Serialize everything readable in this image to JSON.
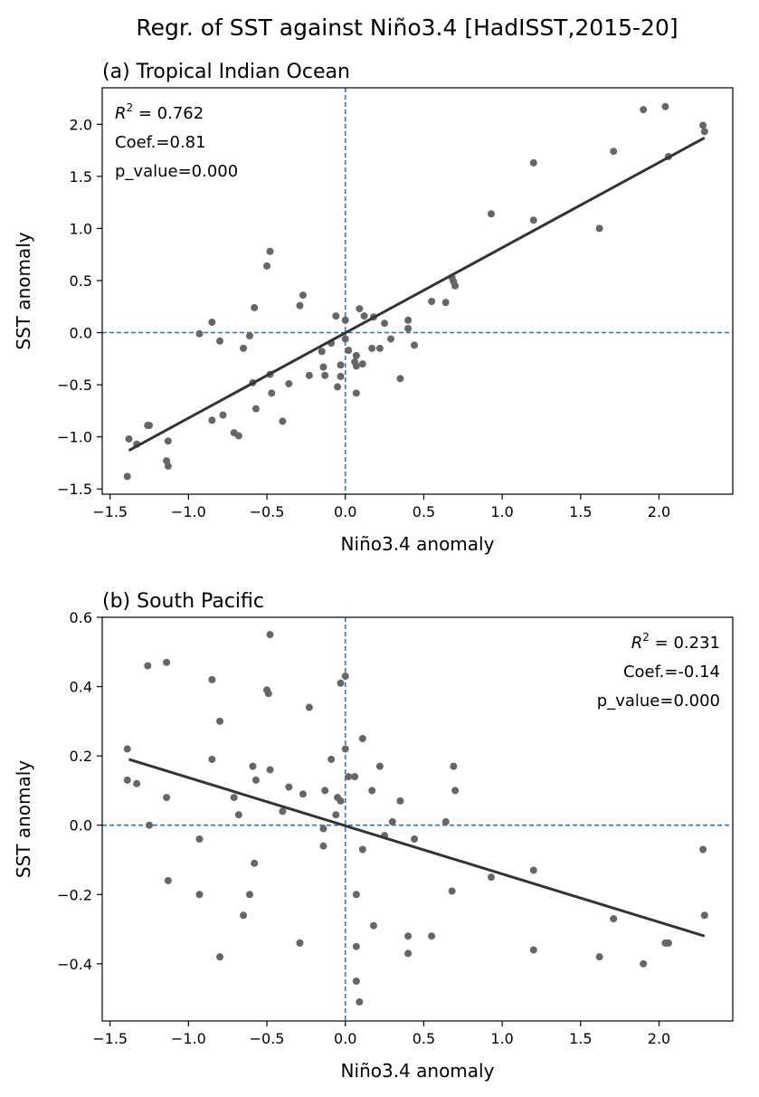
{
  "figure": {
    "suptitle": "Regr. of SST against Niño3.4 [HadISST,2015-20]"
  },
  "colors": {
    "points": "#666666",
    "fit_line": "#333333",
    "zero_lines": "#1f77b4",
    "axes": "#000000"
  },
  "chart_data": [
    {
      "type": "scatter",
      "title": "(a) Tropical Indian Ocean",
      "xlabel": "Niño3.4 anomaly",
      "ylabel": "SST anomaly",
      "xlim": [
        -1.55,
        2.47
      ],
      "ylim": [
        -1.55,
        2.35
      ],
      "xticks": [
        -1.5,
        -1.0,
        -0.5,
        0.0,
        0.5,
        1.0,
        1.5,
        2.0
      ],
      "xtick_labels": [
        "−1.5",
        "−1.0",
        "−0.5",
        "0.0",
        "0.5",
        "1.0",
        "1.5",
        "2.0"
      ],
      "yticks": [
        -1.5,
        -1.0,
        -0.5,
        0.0,
        0.5,
        1.0,
        1.5,
        2.0
      ],
      "ytick_labels": [
        "−1.5",
        "−1.0",
        "−0.5",
        "0.0",
        "0.5",
        "1.0",
        "1.5",
        "2.0"
      ],
      "zero_lines": true,
      "grid": false,
      "stats": {
        "r2_label": "R",
        "r2_sup": "2",
        "r2_value": " = 0.762",
        "coef": "Coef.=0.81",
        "p_value": "p_value=0.000",
        "position": "top-left"
      },
      "fit": {
        "x": [
          -1.38,
          2.29
        ],
        "y": [
          -1.13,
          1.87
        ]
      },
      "points": [
        {
          "x": -1.39,
          "y": -1.38
        },
        {
          "x": -1.38,
          "y": -1.02
        },
        {
          "x": -1.33,
          "y": -1.07
        },
        {
          "x": -1.26,
          "y": -0.89
        },
        {
          "x": -1.25,
          "y": -0.89
        },
        {
          "x": -1.14,
          "y": -1.23
        },
        {
          "x": -1.13,
          "y": -1.28
        },
        {
          "x": -1.13,
          "y": -1.04
        },
        {
          "x": -0.93,
          "y": -0.01
        },
        {
          "x": -0.85,
          "y": 0.1
        },
        {
          "x": -0.85,
          "y": -0.84
        },
        {
          "x": -0.8,
          "y": -0.08
        },
        {
          "x": -0.78,
          "y": -0.79
        },
        {
          "x": -0.71,
          "y": -0.96
        },
        {
          "x": -0.68,
          "y": -0.99
        },
        {
          "x": -0.65,
          "y": -0.15
        },
        {
          "x": -0.61,
          "y": -0.03
        },
        {
          "x": -0.59,
          "y": -0.48
        },
        {
          "x": -0.58,
          "y": 0.24
        },
        {
          "x": -0.57,
          "y": -0.73
        },
        {
          "x": -0.5,
          "y": 0.64
        },
        {
          "x": -0.48,
          "y": 0.78
        },
        {
          "x": -0.48,
          "y": -0.4
        },
        {
          "x": -0.47,
          "y": -0.58
        },
        {
          "x": -0.4,
          "y": -0.85
        },
        {
          "x": -0.36,
          "y": -0.49
        },
        {
          "x": -0.29,
          "y": 0.26
        },
        {
          "x": -0.27,
          "y": 0.36
        },
        {
          "x": -0.23,
          "y": -0.41
        },
        {
          "x": -0.15,
          "y": -0.18
        },
        {
          "x": -0.14,
          "y": -0.33
        },
        {
          "x": -0.13,
          "y": -0.41
        },
        {
          "x": -0.09,
          "y": -0.1
        },
        {
          "x": -0.06,
          "y": 0.16
        },
        {
          "x": -0.05,
          "y": -0.52
        },
        {
          "x": -0.03,
          "y": -0.31
        },
        {
          "x": -0.03,
          "y": -0.42
        },
        {
          "x": 0.0,
          "y": -0.06
        },
        {
          "x": 0.0,
          "y": 0.12
        },
        {
          "x": 0.02,
          "y": -0.17
        },
        {
          "x": 0.06,
          "y": -0.28
        },
        {
          "x": 0.07,
          "y": -0.22
        },
        {
          "x": 0.07,
          "y": -0.32
        },
        {
          "x": 0.07,
          "y": -0.58
        },
        {
          "x": 0.09,
          "y": 0.23
        },
        {
          "x": 0.11,
          "y": -0.3
        },
        {
          "x": 0.12,
          "y": 0.16
        },
        {
          "x": 0.17,
          "y": -0.15
        },
        {
          "x": 0.18,
          "y": 0.15
        },
        {
          "x": 0.22,
          "y": -0.15
        },
        {
          "x": 0.25,
          "y": 0.09
        },
        {
          "x": 0.29,
          "y": -0.06
        },
        {
          "x": 0.35,
          "y": -0.44
        },
        {
          "x": 0.4,
          "y": 0.12
        },
        {
          "x": 0.4,
          "y": 0.04
        },
        {
          "x": 0.44,
          "y": -0.12
        },
        {
          "x": 0.55,
          "y": 0.3
        },
        {
          "x": 0.64,
          "y": 0.29
        },
        {
          "x": 0.68,
          "y": 0.53
        },
        {
          "x": 0.69,
          "y": 0.49
        },
        {
          "x": 0.7,
          "y": 0.45
        },
        {
          "x": 0.93,
          "y": 1.14
        },
        {
          "x": 1.2,
          "y": 1.63
        },
        {
          "x": 1.2,
          "y": 1.08
        },
        {
          "x": 1.62,
          "y": 1.0
        },
        {
          "x": 1.71,
          "y": 1.74
        },
        {
          "x": 1.9,
          "y": 2.14
        },
        {
          "x": 2.04,
          "y": 2.17
        },
        {
          "x": 2.06,
          "y": 1.69
        },
        {
          "x": 2.28,
          "y": 1.99
        },
        {
          "x": 2.29,
          "y": 1.93
        }
      ]
    },
    {
      "type": "scatter",
      "title": "(b) South Pacific",
      "xlabel": "Niño3.4 anomaly",
      "ylabel": "SST anomaly",
      "xlim": [
        -1.55,
        2.47
      ],
      "ylim": [
        -0.565,
        0.6
      ],
      "xticks": [
        -1.5,
        -1.0,
        -0.5,
        0.0,
        0.5,
        1.0,
        1.5,
        2.0
      ],
      "xtick_labels": [
        "−1.5",
        "−1.0",
        "−0.5",
        "0.0",
        "0.5",
        "1.0",
        "1.5",
        "2.0"
      ],
      "yticks": [
        -0.4,
        -0.2,
        0.0,
        0.2,
        0.4,
        0.6
      ],
      "ytick_labels": [
        "−0.4",
        "−0.2",
        "0.0",
        "0.2",
        "0.4",
        "0.6"
      ],
      "zero_lines": true,
      "grid": false,
      "stats": {
        "r2_label": "R",
        "r2_sup": "2",
        "r2_value": " = 0.231",
        "coef": "Coef.=-0.14",
        "p_value": "p_value=0.000",
        "position": "top-right"
      },
      "fit": {
        "x": [
          -1.38,
          2.29
        ],
        "y": [
          0.19,
          -0.32
        ]
      },
      "points": [
        {
          "x": -1.39,
          "y": 0.22
        },
        {
          "x": -1.39,
          "y": 0.13
        },
        {
          "x": -1.33,
          "y": 0.12
        },
        {
          "x": -1.26,
          "y": 0.46
        },
        {
          "x": -1.25,
          "y": 0.0
        },
        {
          "x": -1.14,
          "y": 0.47
        },
        {
          "x": -1.14,
          "y": 0.08
        },
        {
          "x": -1.13,
          "y": -0.16
        },
        {
          "x": -0.93,
          "y": -0.04
        },
        {
          "x": -0.93,
          "y": -0.2
        },
        {
          "x": -0.85,
          "y": 0.42
        },
        {
          "x": -0.85,
          "y": 0.19
        },
        {
          "x": -0.8,
          "y": 0.3
        },
        {
          "x": -0.8,
          "y": -0.38
        },
        {
          "x": -0.71,
          "y": 0.08
        },
        {
          "x": -0.68,
          "y": 0.03
        },
        {
          "x": -0.65,
          "y": -0.26
        },
        {
          "x": -0.61,
          "y": -0.2
        },
        {
          "x": -0.59,
          "y": 0.17
        },
        {
          "x": -0.58,
          "y": -0.11
        },
        {
          "x": -0.57,
          "y": 0.13
        },
        {
          "x": -0.5,
          "y": 0.39
        },
        {
          "x": -0.49,
          "y": 0.38
        },
        {
          "x": -0.48,
          "y": 0.55
        },
        {
          "x": -0.48,
          "y": 0.16
        },
        {
          "x": -0.4,
          "y": 0.04
        },
        {
          "x": -0.36,
          "y": 0.11
        },
        {
          "x": -0.29,
          "y": -0.34
        },
        {
          "x": -0.27,
          "y": 0.09
        },
        {
          "x": -0.23,
          "y": 0.34
        },
        {
          "x": -0.14,
          "y": -0.01
        },
        {
          "x": -0.14,
          "y": -0.06
        },
        {
          "x": -0.13,
          "y": 0.1
        },
        {
          "x": -0.09,
          "y": 0.19
        },
        {
          "x": -0.06,
          "y": 0.03
        },
        {
          "x": -0.05,
          "y": 0.08
        },
        {
          "x": -0.03,
          "y": 0.07
        },
        {
          "x": -0.03,
          "y": 0.41
        },
        {
          "x": 0.0,
          "y": 0.43
        },
        {
          "x": 0.0,
          "y": 0.22
        },
        {
          "x": 0.02,
          "y": 0.14
        },
        {
          "x": 0.06,
          "y": 0.14
        },
        {
          "x": 0.07,
          "y": -0.2
        },
        {
          "x": 0.07,
          "y": -0.35
        },
        {
          "x": 0.07,
          "y": -0.45
        },
        {
          "x": 0.09,
          "y": -0.51
        },
        {
          "x": 0.11,
          "y": 0.25
        },
        {
          "x": 0.11,
          "y": -0.07
        },
        {
          "x": 0.17,
          "y": 0.1
        },
        {
          "x": 0.18,
          "y": -0.29
        },
        {
          "x": 0.22,
          "y": 0.17
        },
        {
          "x": 0.25,
          "y": -0.03
        },
        {
          "x": 0.3,
          "y": 0.01
        },
        {
          "x": 0.35,
          "y": 0.07
        },
        {
          "x": 0.4,
          "y": -0.32
        },
        {
          "x": 0.4,
          "y": -0.37
        },
        {
          "x": 0.44,
          "y": -0.04
        },
        {
          "x": 0.55,
          "y": -0.32
        },
        {
          "x": 0.64,
          "y": 0.01
        },
        {
          "x": 0.68,
          "y": -0.19
        },
        {
          "x": 0.69,
          "y": 0.17
        },
        {
          "x": 0.7,
          "y": 0.1
        },
        {
          "x": 0.93,
          "y": -0.15
        },
        {
          "x": 1.2,
          "y": -0.36
        },
        {
          "x": 1.2,
          "y": -0.13
        },
        {
          "x": 1.62,
          "y": -0.38
        },
        {
          "x": 1.71,
          "y": -0.27
        },
        {
          "x": 1.9,
          "y": -0.4
        },
        {
          "x": 2.04,
          "y": -0.34
        },
        {
          "x": 2.06,
          "y": -0.34
        },
        {
          "x": 2.28,
          "y": -0.07
        },
        {
          "x": 2.29,
          "y": -0.26
        }
      ]
    }
  ]
}
